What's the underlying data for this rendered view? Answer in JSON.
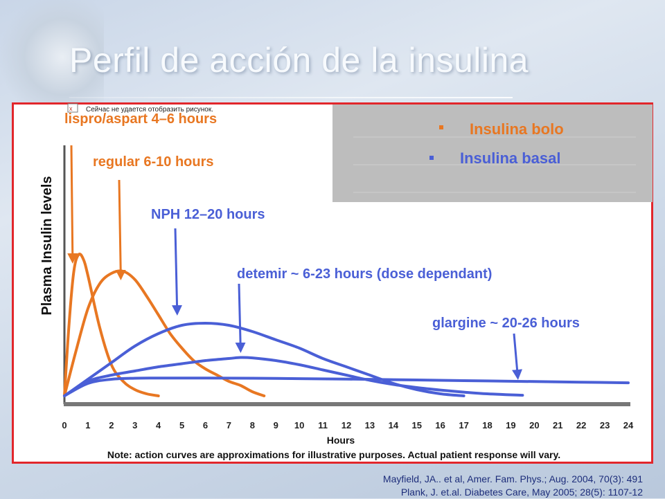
{
  "slide": {
    "title": "Perfil de acción de la insulina",
    "broken_image_text": "Сейчас не удается отобразить рисунок.",
    "citations": [
      "Mayfield, JA.. et al, Amer. Fam. Phys.; Aug. 2004, 70(3): 491",
      "Plank, J. et.al. Diabetes Care, May 2005; 28(5): 1107-12"
    ]
  },
  "chart_data": {
    "type": "line",
    "title": "",
    "xlabel": "Hours",
    "ylabel": "Plasma Insulin levels",
    "xlim": [
      0,
      24
    ],
    "ylim": [
      0,
      1
    ],
    "x_ticks": [
      "0",
      "1",
      "2",
      "3",
      "4",
      "5",
      "6",
      "7",
      "8",
      "9",
      "10",
      "11",
      "12",
      "13",
      "14",
      "15",
      "16",
      "17",
      "18",
      "19",
      "20",
      "21",
      "22",
      "23",
      "24"
    ],
    "note": "Note: action curves are approximations for illustrative purposes.  Actual patient response will vary.",
    "legend": {
      "placement": "top-right",
      "entries": [
        {
          "label": "Insulina bolo",
          "color": "#e87722"
        },
        {
          "label": "Insulina basal",
          "color": "#4a5fd6"
        }
      ]
    },
    "colors": {
      "bolo": "#e87722",
      "basal": "#4a5fd6",
      "title_orange": "#e87722",
      "title_blue": "#4a5fd6"
    },
    "annotations": [
      {
        "label": "lispro/aspart 4–6 hours",
        "color": "#e87722",
        "arrow_to": [
          0.35,
          0.62
        ]
      },
      {
        "label": "regular 6-10 hours",
        "color": "#e87722",
        "arrow_to": [
          2.4,
          0.54
        ]
      },
      {
        "label": "NPH 12–20 hours",
        "color": "#4a5fd6",
        "arrow_to": [
          4.8,
          0.37
        ]
      },
      {
        "label": "detemir ~ 6-23 hours (dose dependant)",
        "color": "#4a5fd6",
        "arrow_to": [
          7.5,
          0.19
        ]
      },
      {
        "label": "glargine ~ 20-26 hours",
        "color": "#4a5fd6",
        "arrow_to": [
          19.3,
          0.06
        ]
      }
    ],
    "series": [
      {
        "group": "bolo",
        "x": [
          0,
          0.2,
          0.4,
          0.6,
          0.8,
          1,
          1.5,
          2,
          2.5,
          3,
          3.5,
          4
        ],
        "y": [
          0,
          0.35,
          0.6,
          0.68,
          0.66,
          0.58,
          0.33,
          0.15,
          0.07,
          0.03,
          0.01,
          0
        ]
      },
      {
        "group": "bolo",
        "x": [
          0,
          0.5,
          1,
          1.5,
          2,
          2.5,
          3,
          3.5,
          4,
          4.5,
          5,
          5.5,
          6,
          6.5,
          7,
          7.5,
          8,
          8.5
        ],
        "y": [
          0,
          0.22,
          0.42,
          0.54,
          0.59,
          0.6,
          0.56,
          0.48,
          0.39,
          0.3,
          0.23,
          0.17,
          0.13,
          0.1,
          0.07,
          0.05,
          0.02,
          0
        ]
      },
      {
        "group": "basal",
        "x": [
          0,
          1,
          2,
          3,
          4,
          5,
          6,
          7,
          8,
          9,
          10,
          11,
          12,
          13,
          14,
          15,
          16,
          17
        ],
        "y": [
          0,
          0.08,
          0.16,
          0.24,
          0.3,
          0.34,
          0.35,
          0.34,
          0.31,
          0.27,
          0.23,
          0.18,
          0.14,
          0.1,
          0.06,
          0.03,
          0.01,
          0
        ]
      },
      {
        "group": "basal",
        "x": [
          0,
          1,
          2,
          3,
          4,
          5,
          6,
          7,
          7.5,
          8,
          9,
          10,
          11,
          12,
          13,
          14,
          15,
          16,
          17,
          18,
          19.5
        ],
        "y": [
          0,
          0.07,
          0.1,
          0.12,
          0.14,
          0.155,
          0.17,
          0.18,
          0.185,
          0.183,
          0.17,
          0.15,
          0.125,
          0.1,
          0.075,
          0.055,
          0.04,
          0.028,
          0.018,
          0.01,
          0.003
        ]
      },
      {
        "group": "basal",
        "x": [
          0,
          1,
          2,
          3,
          4,
          6,
          8,
          10,
          12,
          14,
          16,
          18,
          20,
          22,
          24
        ],
        "y": [
          0,
          0.06,
          0.08,
          0.085,
          0.086,
          0.086,
          0.085,
          0.083,
          0.081,
          0.078,
          0.075,
          0.072,
          0.069,
          0.066,
          0.063
        ]
      }
    ]
  }
}
